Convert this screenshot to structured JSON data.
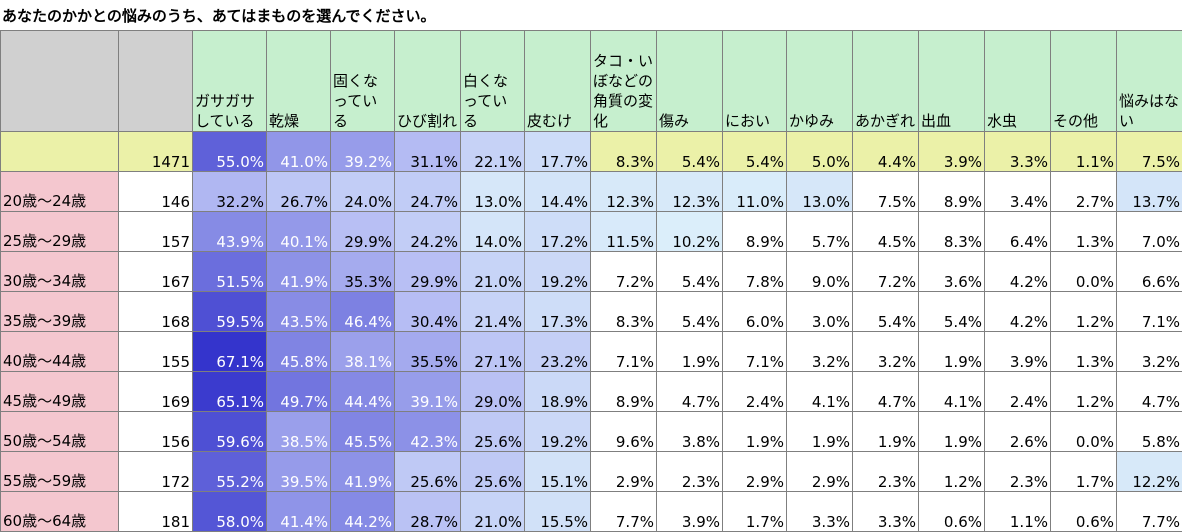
{
  "title": "あなたのかかとの悩みのうち、あてはまものを選んでください。",
  "chart_data": {
    "type": "table",
    "columns": [
      "ガサガサしている",
      "乾燥",
      "固くなっている",
      "ひび割れ",
      "白くなっている",
      "皮むけ",
      "タコ・いぼなどの角質の変化",
      "傷み",
      "におい",
      "かゆみ",
      "あかぎれ",
      "出血",
      "水虫",
      "その他",
      "悩みはない"
    ],
    "total": {
      "label": "",
      "n": "1471",
      "values": [
        "55.0%",
        "41.0%",
        "39.2%",
        "31.1%",
        "22.1%",
        "17.7%",
        "8.3%",
        "5.4%",
        "5.4%",
        "5.0%",
        "4.4%",
        "3.9%",
        "3.3%",
        "1.1%",
        "7.5%"
      ]
    },
    "rows": [
      {
        "label": "20歳～24歳",
        "n": "146",
        "values": [
          "32.2%",
          "26.7%",
          "24.0%",
          "24.7%",
          "13.0%",
          "14.4%",
          "12.3%",
          "12.3%",
          "11.0%",
          "13.0%",
          "7.5%",
          "8.9%",
          "3.4%",
          "2.7%",
          "13.7%"
        ]
      },
      {
        "label": "25歳～29歳",
        "n": "157",
        "values": [
          "43.9%",
          "40.1%",
          "29.9%",
          "24.2%",
          "14.0%",
          "17.2%",
          "11.5%",
          "10.2%",
          "8.9%",
          "5.7%",
          "4.5%",
          "8.3%",
          "6.4%",
          "1.3%",
          "7.0%"
        ]
      },
      {
        "label": "30歳～34歳",
        "n": "167",
        "values": [
          "51.5%",
          "41.9%",
          "35.3%",
          "29.9%",
          "21.0%",
          "19.2%",
          "7.2%",
          "5.4%",
          "7.8%",
          "9.0%",
          "7.2%",
          "3.6%",
          "4.2%",
          "0.0%",
          "6.6%"
        ]
      },
      {
        "label": "35歳～39歳",
        "n": "168",
        "values": [
          "59.5%",
          "43.5%",
          "46.4%",
          "30.4%",
          "21.4%",
          "17.3%",
          "8.3%",
          "5.4%",
          "6.0%",
          "3.0%",
          "5.4%",
          "5.4%",
          "4.2%",
          "1.2%",
          "7.1%"
        ]
      },
      {
        "label": "40歳～44歳",
        "n": "155",
        "values": [
          "67.1%",
          "45.8%",
          "38.1%",
          "35.5%",
          "27.1%",
          "23.2%",
          "7.1%",
          "1.9%",
          "7.1%",
          "3.2%",
          "3.2%",
          "1.9%",
          "3.9%",
          "1.3%",
          "3.2%"
        ]
      },
      {
        "label": "45歳～49歳",
        "n": "169",
        "values": [
          "65.1%",
          "49.7%",
          "44.4%",
          "39.1%",
          "29.0%",
          "18.9%",
          "8.9%",
          "4.7%",
          "2.4%",
          "4.1%",
          "4.7%",
          "4.1%",
          "2.4%",
          "1.2%",
          "4.7%"
        ]
      },
      {
        "label": "50歳～54歳",
        "n": "156",
        "values": [
          "59.6%",
          "38.5%",
          "45.5%",
          "42.3%",
          "25.6%",
          "19.2%",
          "9.6%",
          "3.8%",
          "1.9%",
          "1.9%",
          "1.9%",
          "1.9%",
          "2.6%",
          "0.0%",
          "5.8%"
        ]
      },
      {
        "label": "55歳～59歳",
        "n": "172",
        "values": [
          "55.2%",
          "39.5%",
          "41.9%",
          "25.6%",
          "25.6%",
          "15.1%",
          "2.9%",
          "2.3%",
          "2.9%",
          "2.9%",
          "2.3%",
          "1.2%",
          "2.3%",
          "1.7%",
          "12.2%"
        ]
      },
      {
        "label": "60歳～64歳",
        "n": "181",
        "values": [
          "58.0%",
          "41.4%",
          "44.2%",
          "28.7%",
          "21.0%",
          "15.5%",
          "7.7%",
          "3.9%",
          "1.7%",
          "3.3%",
          "3.3%",
          "0.6%",
          "1.1%",
          "0.6%",
          "7.7%"
        ]
      }
    ]
  },
  "colors": {
    "header": "#c6efce",
    "total": "#ebf1a8",
    "age": "#f4c7cf",
    "corner": "#d0d0d0",
    "scale_high": "#3434cc",
    "scale_low": "#dbeefa"
  }
}
